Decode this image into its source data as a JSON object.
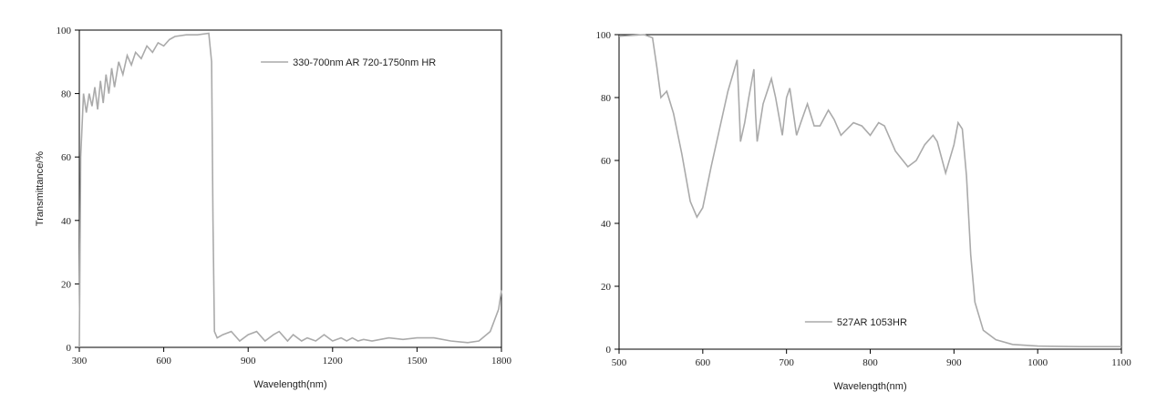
{
  "chart_data": [
    {
      "type": "line",
      "xlabel": "Wavelength(nm)",
      "ylabel": "Transmittance/%",
      "xlim": [
        300,
        1800
      ],
      "ylim": [
        0,
        100
      ],
      "xticks": [
        300,
        600,
        900,
        1200,
        1500,
        1800
      ],
      "yticks": [
        0,
        20,
        40,
        60,
        80,
        100
      ],
      "legend": "upper right",
      "x": [
        300,
        305,
        315,
        325,
        335,
        345,
        355,
        365,
        375,
        385,
        395,
        405,
        415,
        425,
        440,
        455,
        470,
        485,
        500,
        520,
        540,
        560,
        580,
        600,
        620,
        640,
        680,
        720,
        760,
        770,
        775,
        780,
        790,
        810,
        840,
        870,
        900,
        930,
        960,
        990,
        1010,
        1040,
        1060,
        1090,
        1110,
        1140,
        1170,
        1200,
        1230,
        1250,
        1270,
        1290,
        1310,
        1340,
        1370,
        1400,
        1450,
        1500,
        1560,
        1620,
        1680,
        1720,
        1760,
        1790,
        1800
      ],
      "series": [
        {
          "name": "330-700nm AR  720-1750nm HR",
          "color": "#aaaaaa",
          "values": [
            0,
            60,
            80,
            74,
            80,
            76,
            82,
            75,
            84,
            77,
            86,
            80,
            88,
            82,
            90,
            86,
            92,
            89,
            93,
            91,
            95,
            93,
            96,
            95,
            97,
            98,
            98.5,
            98.5,
            99,
            90,
            40,
            5,
            3,
            4,
            5,
            2,
            4,
            5,
            2,
            4,
            5,
            2,
            4,
            2,
            3,
            2,
            4,
            2,
            3,
            2,
            3,
            2,
            2.5,
            2,
            2.5,
            3,
            2.5,
            3,
            3,
            2,
            1.5,
            2,
            5,
            12,
            18
          ]
        }
      ]
    },
    {
      "type": "line",
      "xlabel": "Wavelength(nm)",
      "ylabel": "Transmittance/%",
      "xlim": [
        500,
        1100
      ],
      "ylim": [
        0,
        100
      ],
      "xticks": [
        500,
        600,
        700,
        800,
        900,
        1000,
        1100
      ],
      "yticks": [
        0,
        20,
        40,
        60,
        80,
        100
      ],
      "legend": "lower center",
      "x": [
        500,
        530,
        540,
        545,
        550,
        557,
        565,
        575,
        585,
        593,
        600,
        610,
        620,
        630,
        641,
        643,
        645,
        650,
        655,
        661,
        663,
        665,
        672,
        682,
        687,
        695,
        700,
        704,
        712,
        717,
        725,
        733,
        740,
        750,
        757,
        765,
        780,
        790,
        800,
        810,
        817,
        830,
        845,
        855,
        865,
        875,
        880,
        890,
        900,
        905,
        910,
        915,
        920,
        925,
        935,
        950,
        970,
        1000,
        1050,
        1100
      ],
      "series": [
        {
          "name": "527AR 1053HR",
          "color": "#aaaaaa",
          "values": [
            99.5,
            100,
            99,
            90,
            80,
            82,
            75,
            62,
            47,
            42,
            45,
            58,
            70,
            82,
            92,
            80,
            66,
            72,
            80,
            89,
            75,
            66,
            78,
            86,
            80,
            68,
            80,
            83,
            68,
            72,
            78,
            71,
            71,
            76,
            73,
            68,
            72,
            71,
            68,
            72,
            71,
            63,
            58,
            60,
            65,
            68,
            66,
            56,
            65,
            72,
            70,
            55,
            30,
            15,
            6,
            3,
            1.5,
            1,
            0.8,
            0.8
          ]
        }
      ]
    }
  ]
}
